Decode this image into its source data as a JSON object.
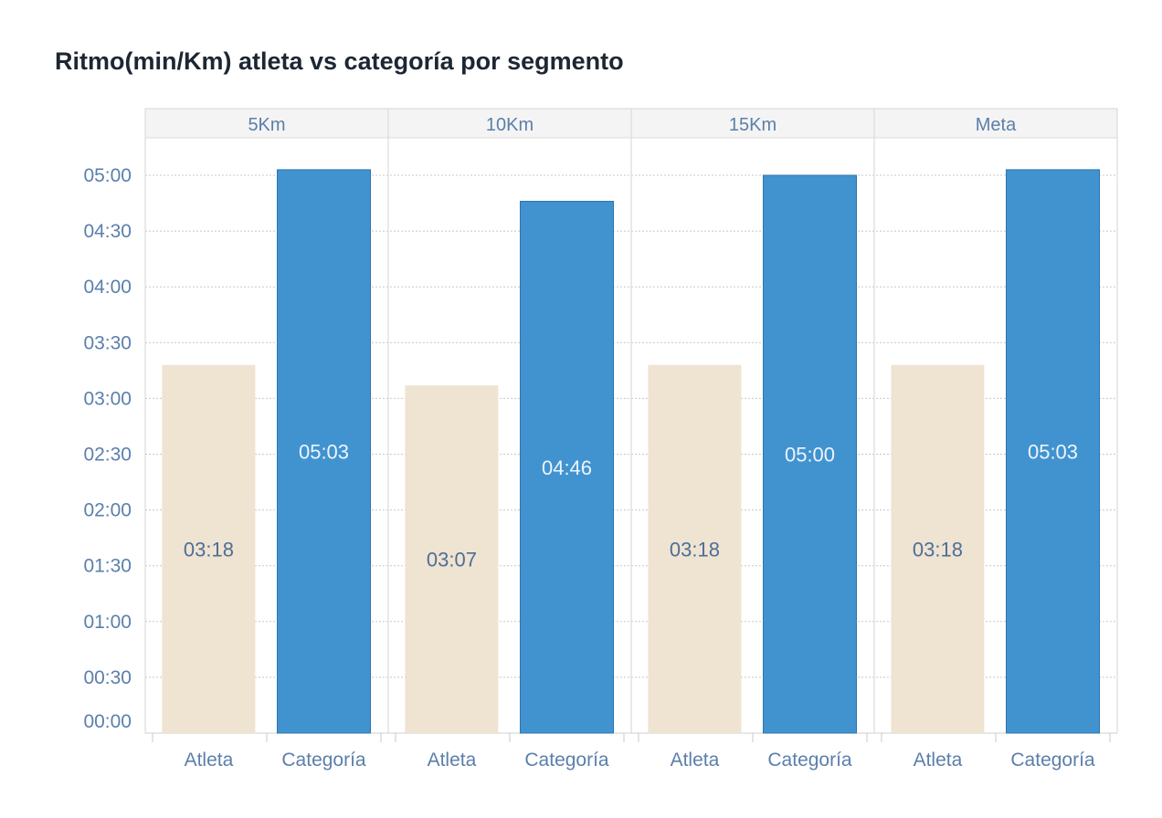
{
  "chart_data": {
    "type": "bar",
    "title": "Ritmo(min/Km) atleta vs categoría por segmento",
    "value_unit": "min:sec",
    "panels": [
      "5Km",
      "10Km",
      "15Km",
      "Meta"
    ],
    "categories": [
      "Atleta",
      "Categoría"
    ],
    "series": [
      {
        "values_seconds": [
          198,
          187,
          198,
          198
        ],
        "labels": [
          "03:18",
          "03:07",
          "03:18",
          "03:18"
        ]
      },
      {
        "values_seconds": [
          303,
          286,
          300,
          303
        ],
        "labels": [
          "05:03",
          "04:46",
          "05:00",
          "05:03"
        ]
      }
    ],
    "y_ticks": [
      "00:00",
      "00:30",
      "01:00",
      "01:30",
      "02:00",
      "02:30",
      "03:00",
      "03:30",
      "04:00",
      "04:30",
      "05:00"
    ],
    "ylim_seconds": [
      0,
      300
    ],
    "grid": true,
    "colors": {
      "atleta": "#efe3d2",
      "categoria": "#4193d0",
      "categoria_border": "#2d74ad",
      "axis_text": "#5b7fab",
      "atleta_label": "#4d6f96",
      "categoria_label": "#eef5fc",
      "title": "#1c2733"
    }
  }
}
